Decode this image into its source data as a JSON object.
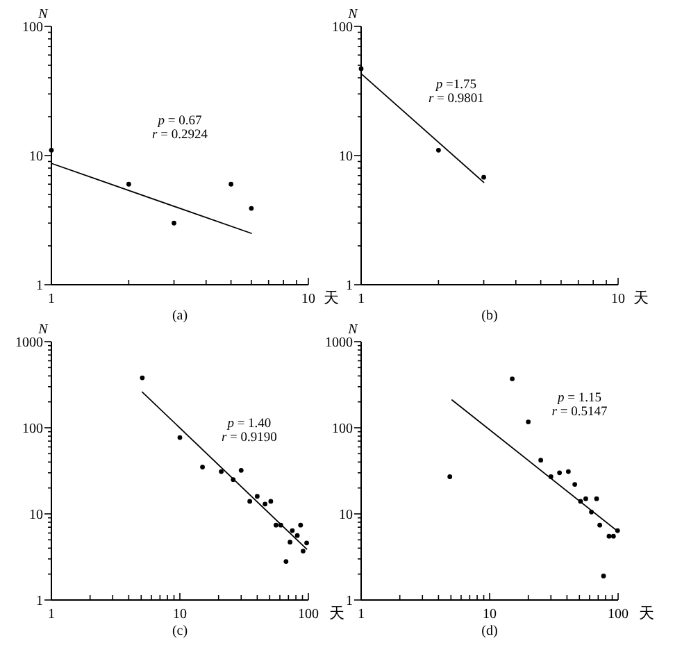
{
  "chart_data": [
    {
      "type": "scatter",
      "title": "(a)",
      "xlabel": "天",
      "ylabel": "N",
      "log": "xy",
      "xlim": [
        1,
        10
      ],
      "ylim": [
        1,
        100
      ],
      "xticks": [
        1,
        {
          "value": 2,
          "label": null
        },
        {
          "value": 3,
          "label": null
        },
        {
          "value": 4,
          "label": null
        },
        {
          "value": 5,
          "label": null
        },
        {
          "value": 6,
          "label": null
        },
        {
          "value": 7,
          "label": null
        },
        {
          "value": 8,
          "label": null
        },
        {
          "value": 9,
          "label": null
        },
        10
      ],
      "yticks": [
        1,
        {
          "value": 2,
          "label": null
        },
        {
          "value": 3,
          "label": null
        },
        {
          "value": 4,
          "label": null
        },
        {
          "value": 5,
          "label": null
        },
        {
          "value": 6,
          "label": null
        },
        {
          "value": 7,
          "label": null
        },
        {
          "value": 8,
          "label": null
        },
        {
          "value": 9,
          "label": null
        },
        10,
        {
          "value": 20,
          "label": null
        },
        {
          "value": 30,
          "label": null
        },
        {
          "value": 40,
          "label": null
        },
        {
          "value": 50,
          "label": null
        },
        {
          "value": 60,
          "label": null
        },
        {
          "value": 70,
          "label": null
        },
        {
          "value": 80,
          "label": null
        },
        {
          "value": 90,
          "label": null
        },
        100
      ],
      "marker": "circle",
      "annotations": [
        "p = 0.67",
        "r = 0.2924"
      ],
      "series": [
        {
          "color": "#000000",
          "x": [
            1,
            2,
            3,
            5,
            6
          ],
          "values": [
            11,
            6,
            3,
            6,
            3.9
          ]
        },
        {
          "type": "line",
          "color": "#000000",
          "marker": "none",
          "x": [
            1,
            6
          ],
          "values": [
            8.7,
            2.5
          ]
        }
      ]
    },
    {
      "type": "scatter",
      "title": "(b)",
      "xlabel": "天",
      "ylabel": "N",
      "log": "xy",
      "xlim": [
        1,
        10
      ],
      "ylim": [
        1,
        100
      ],
      "xticks": [
        1,
        {
          "value": 2,
          "label": null
        },
        {
          "value": 3,
          "label": null
        },
        {
          "value": 4,
          "label": null
        },
        {
          "value": 5,
          "label": null
        },
        {
          "value": 6,
          "label": null
        },
        {
          "value": 7,
          "label": null
        },
        {
          "value": 8,
          "label": null
        },
        {
          "value": 9,
          "label": null
        },
        10
      ],
      "yticks": [
        1,
        {
          "value": 2,
          "label": null
        },
        {
          "value": 3,
          "label": null
        },
        {
          "value": 4,
          "label": null
        },
        {
          "value": 5,
          "label": null
        },
        {
          "value": 6,
          "label": null
        },
        {
          "value": 7,
          "label": null
        },
        {
          "value": 8,
          "label": null
        },
        {
          "value": 9,
          "label": null
        },
        10,
        {
          "value": 20,
          "label": null
        },
        {
          "value": 30,
          "label": null
        },
        {
          "value": 40,
          "label": null
        },
        {
          "value": 50,
          "label": null
        },
        {
          "value": 60,
          "label": null
        },
        {
          "value": 70,
          "label": null
        },
        {
          "value": 80,
          "label": null
        },
        {
          "value": 90,
          "label": null
        },
        100
      ],
      "marker": "circle",
      "annotations": [
        "p =1.75",
        "r = 0.9801"
      ],
      "series": [
        {
          "color": "#000000",
          "x": [
            1,
            2,
            3
          ],
          "values": [
            47,
            11,
            6.8
          ]
        },
        {
          "type": "line",
          "color": "#000000",
          "marker": "none",
          "x": [
            1,
            3
          ],
          "values": [
            43,
            6.2
          ]
        }
      ]
    },
    {
      "type": "scatter",
      "title": "(c)",
      "xlabel": "天",
      "ylabel": "N",
      "log": "xy",
      "xlim": [
        1,
        100
      ],
      "ylim": [
        1,
        1000
      ],
      "xticks": [
        1,
        {
          "value": 2,
          "label": null
        },
        {
          "value": 3,
          "label": null
        },
        {
          "value": 4,
          "label": null
        },
        {
          "value": 5,
          "label": null
        },
        {
          "value": 6,
          "label": null
        },
        {
          "value": 7,
          "label": null
        },
        {
          "value": 8,
          "label": null
        },
        {
          "value": 9,
          "label": null
        },
        10,
        {
          "value": 20,
          "label": null
        },
        {
          "value": 30,
          "label": null
        },
        {
          "value": 40,
          "label": null
        },
        {
          "value": 50,
          "label": null
        },
        {
          "value": 60,
          "label": null
        },
        {
          "value": 70,
          "label": null
        },
        {
          "value": 80,
          "label": null
        },
        {
          "value": 90,
          "label": null
        },
        100
      ],
      "yticks": [
        1,
        {
          "value": 2,
          "label": null
        },
        {
          "value": 3,
          "label": null
        },
        {
          "value": 4,
          "label": null
        },
        {
          "value": 5,
          "label": null
        },
        {
          "value": 6,
          "label": null
        },
        {
          "value": 7,
          "label": null
        },
        {
          "value": 8,
          "label": null
        },
        {
          "value": 9,
          "label": null
        },
        10,
        {
          "value": 20,
          "label": null
        },
        {
          "value": 30,
          "label": null
        },
        {
          "value": 40,
          "label": null
        },
        {
          "value": 50,
          "label": null
        },
        {
          "value": 60,
          "label": null
        },
        {
          "value": 70,
          "label": null
        },
        {
          "value": 80,
          "label": null
        },
        {
          "value": 90,
          "label": null
        },
        100,
        {
          "value": 200,
          "label": null
        },
        {
          "value": 300,
          "label": null
        },
        {
          "value": 400,
          "label": null
        },
        {
          "value": 500,
          "label": null
        },
        {
          "value": 600,
          "label": null
        },
        {
          "value": 700,
          "label": null
        },
        {
          "value": 800,
          "label": null
        },
        {
          "value": 900,
          "label": null
        },
        1000
      ],
      "marker": "circle",
      "annotations": [
        "p = 1.40",
        "r = 0.9190"
      ],
      "series": [
        {
          "color": "#000000",
          "x": [
            5.1,
            10,
            15,
            21,
            26,
            30,
            35,
            40,
            46,
            51,
            56,
            61,
            67,
            72,
            75,
            82,
            87,
            91,
            97
          ],
          "values": [
            380,
            77,
            35,
            31,
            25,
            32,
            14,
            16,
            13,
            14,
            7.4,
            7.4,
            2.8,
            4.7,
            6.4,
            5.6,
            7.4,
            3.7,
            4.6
          ]
        },
        {
          "type": "line",
          "color": "#000000",
          "marker": "none",
          "x": [
            5.1,
            97
          ],
          "values": [
            260,
            3.9
          ]
        }
      ]
    },
    {
      "type": "scatter",
      "title": "(d)",
      "xlabel": "天",
      "ylabel": "N",
      "log": "xy",
      "xlim": [
        1,
        100
      ],
      "ylim": [
        1,
        1000
      ],
      "xticks": [
        1,
        {
          "value": 2,
          "label": null
        },
        {
          "value": 3,
          "label": null
        },
        {
          "value": 4,
          "label": null
        },
        {
          "value": 5,
          "label": null
        },
        {
          "value": 6,
          "label": null
        },
        {
          "value": 7,
          "label": null
        },
        {
          "value": 8,
          "label": null
        },
        {
          "value": 9,
          "label": null
        },
        10,
        {
          "value": 20,
          "label": null
        },
        {
          "value": 30,
          "label": null
        },
        {
          "value": 40,
          "label": null
        },
        {
          "value": 50,
          "label": null
        },
        {
          "value": 60,
          "label": null
        },
        {
          "value": 70,
          "label": null
        },
        {
          "value": 80,
          "label": null
        },
        {
          "value": 90,
          "label": null
        },
        100
      ],
      "yticks": [
        1,
        {
          "value": 2,
          "label": null
        },
        {
          "value": 3,
          "label": null
        },
        {
          "value": 4,
          "label": null
        },
        {
          "value": 5,
          "label": null
        },
        {
          "value": 6,
          "label": null
        },
        {
          "value": 7,
          "label": null
        },
        {
          "value": 8,
          "label": null
        },
        {
          "value": 9,
          "label": null
        },
        10,
        {
          "value": 20,
          "label": null
        },
        {
          "value": 30,
          "label": null
        },
        {
          "value": 40,
          "label": null
        },
        {
          "value": 50,
          "label": null
        },
        {
          "value": 60,
          "label": null
        },
        {
          "value": 70,
          "label": null
        },
        {
          "value": 80,
          "label": null
        },
        {
          "value": 90,
          "label": null
        },
        100,
        {
          "value": 200,
          "label": null
        },
        {
          "value": 300,
          "label": null
        },
        {
          "value": 400,
          "label": null
        },
        {
          "value": 500,
          "label": null
        },
        {
          "value": 600,
          "label": null
        },
        {
          "value": 700,
          "label": null
        },
        {
          "value": 800,
          "label": null
        },
        {
          "value": 900,
          "label": null
        },
        1000
      ],
      "marker": "circle",
      "annotations": [
        "p = 1.15",
        "r = 0.5147"
      ],
      "series": [
        {
          "color": "#000000",
          "x": [
            4.9,
            15,
            20,
            25,
            30,
            35,
            41,
            46,
            51,
            56,
            62,
            68,
            72,
            77,
            85,
            92,
            99
          ],
          "values": [
            27,
            370,
            117,
            42,
            27,
            30,
            31,
            22,
            14,
            15,
            10.5,
            15,
            7.4,
            1.9,
            5.5,
            5.5,
            6.4
          ]
        },
        {
          "type": "line",
          "color": "#000000",
          "marker": "none",
          "x": [
            5.1,
            99
          ],
          "values": [
            210,
            6.3
          ]
        }
      ]
    }
  ]
}
